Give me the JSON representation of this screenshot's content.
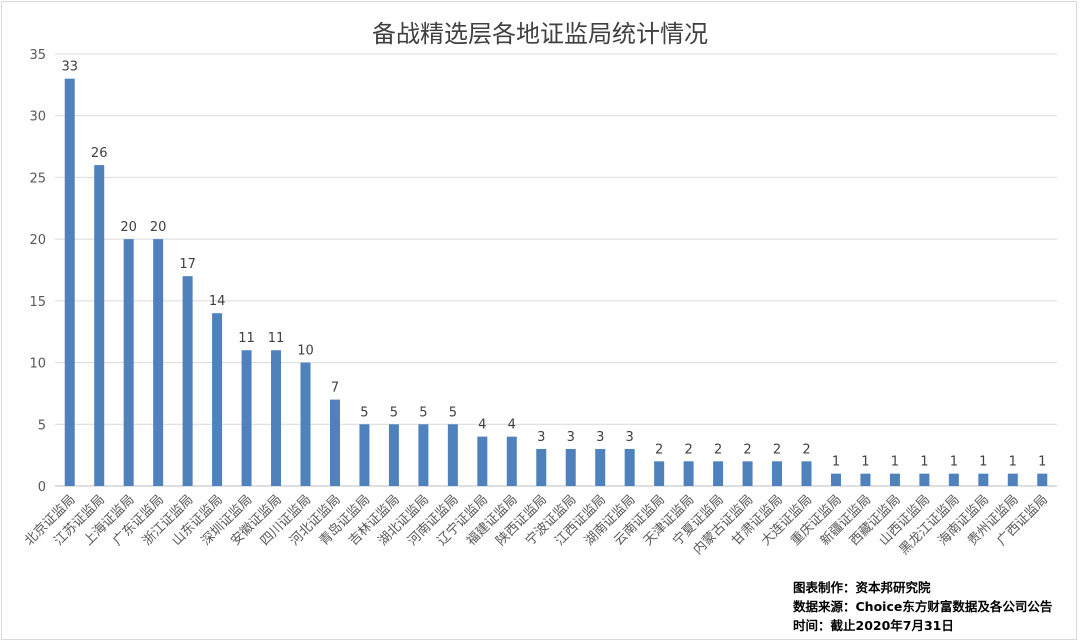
{
  "chart_data": {
    "type": "bar",
    "title": "备战精选层各地证监局统计情况",
    "categories": [
      "北京证监局",
      "江苏证监局",
      "上海证监局",
      "广东证监局",
      "浙江证监局",
      "山东证监局",
      "深圳证监局",
      "安徽证监局",
      "四川证监局",
      "河北证监局",
      "青岛证监局",
      "吉林证监局",
      "湖北证监局",
      "河南证监局",
      "辽宁证监局",
      "福建证监局",
      "陕西证监局",
      "宁波证监局",
      "江西证监局",
      "湖南证监局",
      "云南证监局",
      "天津证监局",
      "宁夏证监局",
      "内蒙古证监局",
      "甘肃证监局",
      "大连证监局",
      "重庆证监局",
      "新疆证监局",
      "西藏证监局",
      "山西证监局",
      "黑龙江证监局",
      "海南证监局",
      "贵州证监局",
      "广西证监局"
    ],
    "values": [
      33,
      26,
      20,
      20,
      17,
      14,
      11,
      11,
      10,
      7,
      5,
      5,
      5,
      5,
      4,
      4,
      3,
      3,
      3,
      3,
      2,
      2,
      2,
      2,
      2,
      2,
      1,
      1,
      1,
      1,
      1,
      1,
      1,
      1
    ],
    "ylim": [
      0,
      35
    ],
    "yticks": [
      0,
      5,
      10,
      15,
      20,
      25,
      30,
      35
    ],
    "grid": true,
    "data_labels": true,
    "bar_color": "#4f81bd"
  },
  "notes": {
    "maker": "图表制作：资本邦研究院",
    "source": "数据来源：Choice东方财富数据及各公司公告",
    "time": "时间：截止2020年7月31日"
  }
}
